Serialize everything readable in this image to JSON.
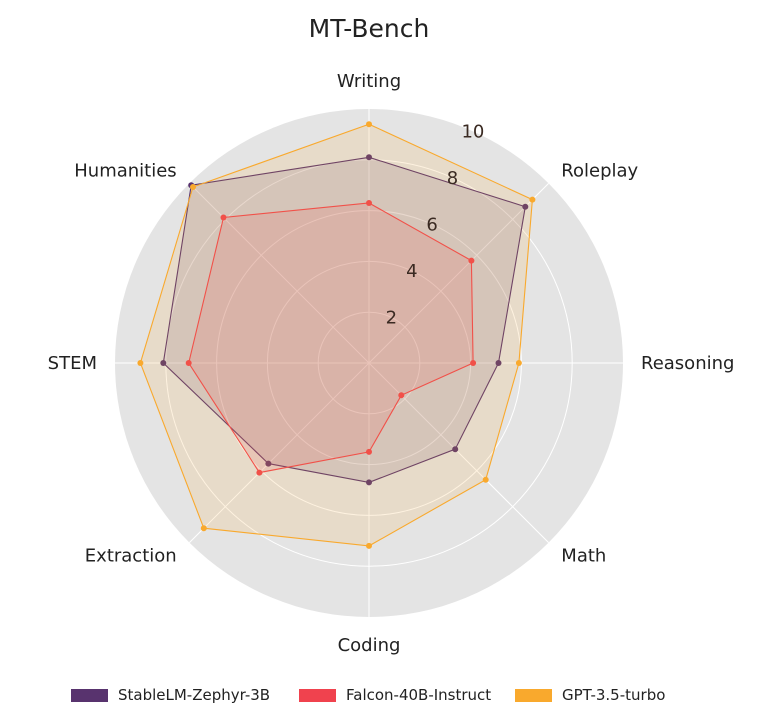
{
  "chart_data": {
    "type": "radar",
    "title": "MT-Bench",
    "axes": [
      "Writing",
      "Roleplay",
      "Reasoning",
      "Math",
      "Coding",
      "Extraction",
      "STEM",
      "Humanities"
    ],
    "rlim": [
      0,
      10
    ],
    "rticks": [
      2,
      4,
      6,
      8,
      10
    ],
    "grid": true,
    "legend_position": "bottom",
    "series": [
      {
        "name": "StableLM-Zephyr-3B",
        "color": "#58336e",
        "values": [
          8.1,
          8.7,
          5.1,
          4.8,
          4.7,
          5.6,
          8.1,
          9.9
        ]
      },
      {
        "name": "Falcon-40B-Instruct",
        "color": "#f0424e",
        "values": [
          6.3,
          5.7,
          4.1,
          1.8,
          3.5,
          6.1,
          7.1,
          8.1
        ]
      },
      {
        "name": "GPT-3.5-turbo",
        "color": "#f9a92d",
        "values": [
          9.4,
          9.1,
          5.9,
          6.5,
          7.2,
          9.2,
          9.0,
          9.8
        ]
      }
    ]
  }
}
